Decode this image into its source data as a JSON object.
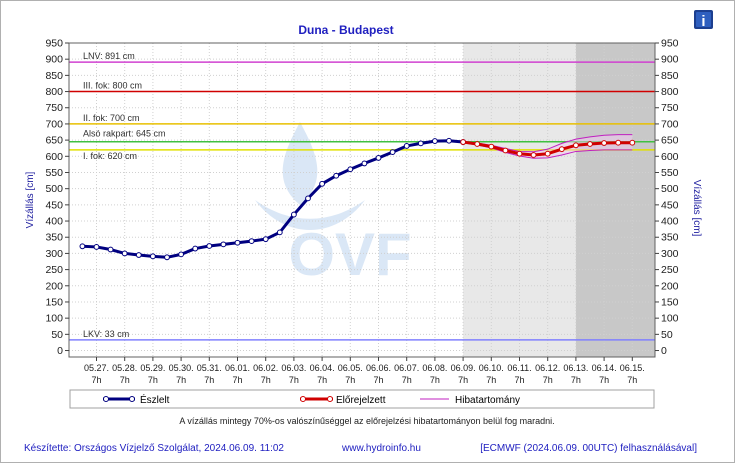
{
  "chart_data": {
    "type": "line",
    "title": "Duna - Budapest",
    "ylabel_left": "Vízállás [cm]",
    "ylabel_right": "Vízállás [cm]",
    "ylim": [
      -20,
      950
    ],
    "y_ticks": [
      0,
      50,
      100,
      150,
      200,
      250,
      300,
      350,
      400,
      450,
      500,
      550,
      600,
      650,
      700,
      750,
      800,
      850,
      900,
      950
    ],
    "x_dates": [
      "05.27.",
      "05.28.",
      "05.29.",
      "05.30.",
      "05.31.",
      "06.01.",
      "06.02.",
      "06.03.",
      "06.04.",
      "06.05.",
      "06.06.",
      "06.07.",
      "06.08.",
      "06.09.",
      "06.10.",
      "06.11.",
      "06.12.",
      "06.13.",
      "06.14.",
      "06.15."
    ],
    "x_hour_label": "7h",
    "observed_end_day": 13,
    "forecast_shade_end_day": 17,
    "levels": [
      {
        "label": "LNV: 891 cm",
        "value": 891,
        "color": "#d040d0"
      },
      {
        "label": "III. fok: 800 cm",
        "value": 800,
        "color": "#d00000"
      },
      {
        "label": "II. fok: 700 cm",
        "value": 700,
        "color": "#e8c000"
      },
      {
        "label": "Alsó rakpart: 645 cm",
        "value": 645,
        "color": "#40c040"
      },
      {
        "label": "I. fok: 620 cm",
        "value": 620,
        "color": "#e0e000"
      },
      {
        "label": "LKV: 33 cm",
        "value": 33,
        "color": "#8080ff"
      }
    ],
    "series": [
      {
        "name": "Észlelt",
        "color": "#000080",
        "points": [
          [
            -0.5,
            322
          ],
          [
            0,
            320
          ],
          [
            0.5,
            312
          ],
          [
            1,
            300
          ],
          [
            1.5,
            295
          ],
          [
            2,
            291
          ],
          [
            2.5,
            288
          ],
          [
            3,
            297
          ],
          [
            3.5,
            315
          ],
          [
            4,
            323
          ],
          [
            4.5,
            328
          ],
          [
            5,
            333
          ],
          [
            5.5,
            338
          ],
          [
            6,
            344
          ],
          [
            6.5,
            365
          ],
          [
            7,
            420
          ],
          [
            7.5,
            470
          ],
          [
            8,
            515
          ],
          [
            8.5,
            540
          ],
          [
            9,
            560
          ],
          [
            9.5,
            578
          ],
          [
            10,
            595
          ],
          [
            10.5,
            613
          ],
          [
            11,
            632
          ],
          [
            11.5,
            640
          ],
          [
            12,
            647
          ],
          [
            12.5,
            648
          ],
          [
            13,
            644
          ]
        ]
      },
      {
        "name": "Előrejelzett",
        "color": "#d00000",
        "points": [
          [
            13,
            644
          ],
          [
            13.5,
            638
          ],
          [
            14,
            630
          ],
          [
            14.5,
            618
          ],
          [
            15,
            608
          ],
          [
            15.5,
            604
          ],
          [
            16,
            608
          ],
          [
            16.5,
            622
          ],
          [
            17,
            634
          ],
          [
            17.5,
            638
          ],
          [
            18,
            641
          ],
          [
            18.5,
            642
          ],
          [
            19,
            642
          ]
        ]
      },
      {
        "name": "Hibatartomány",
        "color": "#c020c0",
        "upper": [
          [
            13,
            646
          ],
          [
            13.5,
            641
          ],
          [
            14,
            634
          ],
          [
            14.5,
            624
          ],
          [
            15,
            615
          ],
          [
            15.5,
            614
          ],
          [
            16,
            622
          ],
          [
            16.5,
            640
          ],
          [
            17,
            653
          ],
          [
            17.5,
            660
          ],
          [
            18,
            665
          ],
          [
            18.5,
            667
          ],
          [
            19,
            667
          ]
        ],
        "lower": [
          [
            13,
            642
          ],
          [
            13.5,
            635
          ],
          [
            14,
            626
          ],
          [
            14.5,
            612
          ],
          [
            15,
            601
          ],
          [
            15.5,
            594
          ],
          [
            16,
            595
          ],
          [
            16.5,
            604
          ],
          [
            17,
            615
          ],
          [
            17.5,
            618
          ],
          [
            18,
            620
          ],
          [
            18.5,
            620
          ],
          [
            19,
            620
          ]
        ]
      }
    ],
    "legend_placement": "bottom",
    "footnote": "A vízállás mintegy 70%-os valószínűséggel az előrejelzési hibatartományon belül fog maradni.",
    "watermark": "OVF"
  },
  "footer": {
    "credit": "Készítette: Országos Vízjelző Szolgálat, 2024.06.09. 11:02",
    "website": "www.hydroinfo.hu",
    "source": "[ECMWF (2024.06.09. 00UTC) felhasználásával]"
  },
  "info_icon": "info-icon"
}
